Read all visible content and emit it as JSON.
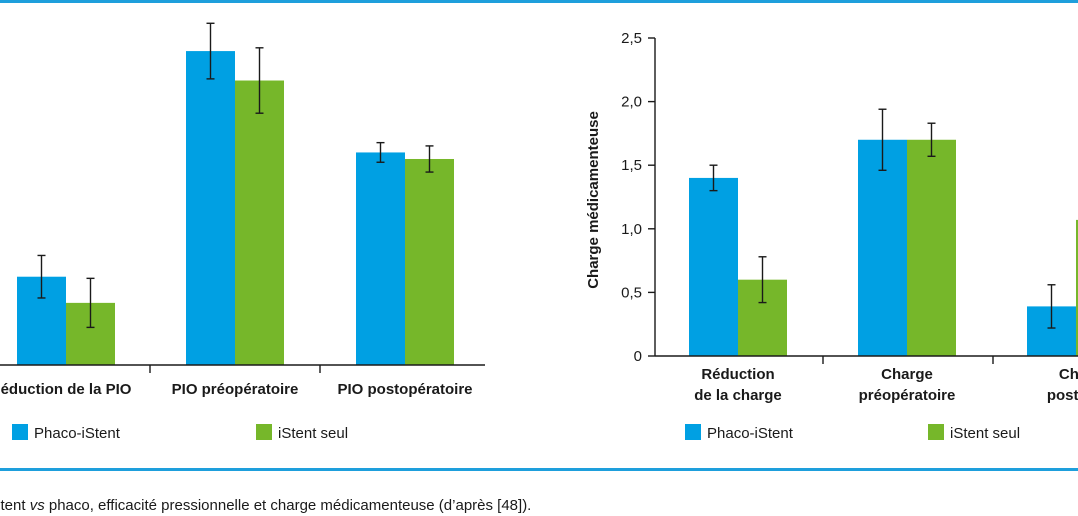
{
  "colors": {
    "phaco": "#00a0e3",
    "istent": "#76b72a",
    "rule": "#1e9fdc",
    "axis": "#1a1a1a"
  },
  "caption": {
    "part1": "stent ",
    "vs": "vs",
    "part2": " phaco, efficacité pressionnelle et charge médicamenteuse (d’après [48])."
  },
  "chart_data": [
    {
      "type": "bar",
      "title": "",
      "xlabel": "",
      "ylabel": "",
      "categories": [
        "éduction de la PIO",
        "PIO préopératoire",
        "PIO postopératoire"
      ],
      "series": [
        {
          "name": "Phaco-iStent",
          "values": [
            27,
            96,
            65
          ],
          "errors": [
            6.5,
            8.5,
            3
          ]
        },
        {
          "name": "iStent seul",
          "values": [
            19,
            87,
            63
          ],
          "errors": [
            7.5,
            10,
            4
          ]
        }
      ],
      "ylim": [
        0,
        100
      ],
      "grid": false,
      "legend": "bottom"
    },
    {
      "type": "bar",
      "title": "",
      "xlabel": "",
      "ylabel": "Charge médicamenteuse",
      "categories": [
        [
          "Réduction",
          "de la charge"
        ],
        [
          "Charge",
          "préopératoire"
        ],
        [
          "Char",
          "postopé"
        ]
      ],
      "series": [
        {
          "name": "Phaco-iStent",
          "values": [
            1.4,
            1.7,
            0.39
          ],
          "errors": [
            0.1,
            0.24,
            0.17
          ]
        },
        {
          "name": "iStent seul",
          "values": [
            0.6,
            1.7,
            1.07
          ],
          "errors": [
            0.18,
            0.13,
            0
          ]
        }
      ],
      "yticks": [
        "0",
        "0,5",
        "1,0",
        "1,5",
        "2,0",
        "2,5"
      ],
      "ylim": [
        0,
        2.5
      ],
      "grid": false,
      "legend": "bottom"
    }
  ]
}
